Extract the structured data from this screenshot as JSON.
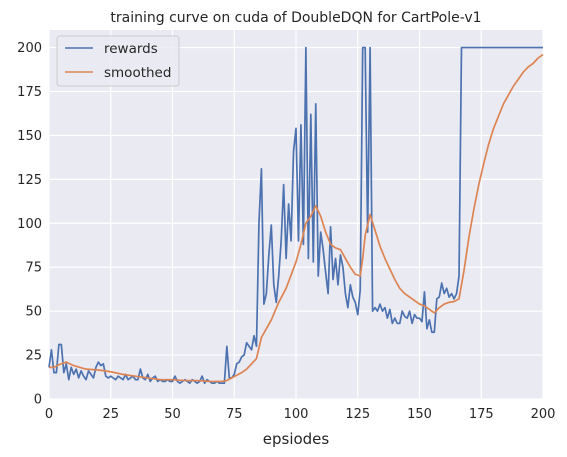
{
  "chart_data": {
    "type": "line",
    "title": "training curve on cuda of DoubleDQN for CartPole-v1",
    "xlabel": "epsiodes",
    "ylabel": "",
    "xlim": [
      0,
      200
    ],
    "ylim": [
      0,
      210
    ],
    "xticks": [
      0,
      25,
      50,
      75,
      100,
      125,
      150,
      175,
      200
    ],
    "yticks": [
      0,
      25,
      50,
      75,
      100,
      125,
      150,
      175,
      200
    ],
    "grid": true,
    "background": "#eaeaf2",
    "legend": {
      "placement": "top-left",
      "entries": [
        "rewards",
        "smoothed"
      ]
    },
    "series": [
      {
        "name": "rewards",
        "color": "#4c72b0",
        "points": [
          [
            0,
            18
          ],
          [
            1,
            28
          ],
          [
            2,
            15
          ],
          [
            3,
            15
          ],
          [
            4,
            31
          ],
          [
            5,
            31
          ],
          [
            6,
            15
          ],
          [
            7,
            20
          ],
          [
            8,
            11
          ],
          [
            9,
            18
          ],
          [
            10,
            14
          ],
          [
            11,
            17
          ],
          [
            12,
            12
          ],
          [
            13,
            16
          ],
          [
            14,
            13
          ],
          [
            15,
            11
          ],
          [
            16,
            16
          ],
          [
            17,
            14
          ],
          [
            18,
            12
          ],
          [
            19,
            18
          ],
          [
            20,
            21
          ],
          [
            21,
            19
          ],
          [
            22,
            20
          ],
          [
            23,
            13
          ],
          [
            24,
            12
          ],
          [
            25,
            13
          ],
          [
            26,
            12
          ],
          [
            27,
            11
          ],
          [
            28,
            13
          ],
          [
            29,
            12
          ],
          [
            30,
            11
          ],
          [
            31,
            14
          ],
          [
            32,
            11
          ],
          [
            33,
            12
          ],
          [
            34,
            13
          ],
          [
            35,
            11
          ],
          [
            36,
            11
          ],
          [
            37,
            17
          ],
          [
            38,
            12
          ],
          [
            39,
            11
          ],
          [
            40,
            14
          ],
          [
            41,
            10
          ],
          [
            42,
            12
          ],
          [
            43,
            13
          ],
          [
            44,
            10
          ],
          [
            45,
            11
          ],
          [
            46,
            10
          ],
          [
            47,
            10
          ],
          [
            48,
            11
          ],
          [
            49,
            10
          ],
          [
            50,
            10
          ],
          [
            51,
            13
          ],
          [
            52,
            10
          ],
          [
            53,
            9
          ],
          [
            54,
            10
          ],
          [
            55,
            11
          ],
          [
            56,
            10
          ],
          [
            57,
            9
          ],
          [
            58,
            11
          ],
          [
            59,
            10
          ],
          [
            60,
            9
          ],
          [
            61,
            10
          ],
          [
            62,
            13
          ],
          [
            63,
            9
          ],
          [
            64,
            11
          ],
          [
            65,
            10
          ],
          [
            66,
            9
          ],
          [
            67,
            9
          ],
          [
            68,
            10
          ],
          [
            69,
            9
          ],
          [
            70,
            9
          ],
          [
            71,
            9
          ],
          [
            72,
            30
          ],
          [
            73,
            12
          ],
          [
            74,
            12
          ],
          [
            75,
            14
          ],
          [
            76,
            20
          ],
          [
            77,
            21
          ],
          [
            78,
            24
          ],
          [
            79,
            25
          ],
          [
            80,
            32
          ],
          [
            81,
            30
          ],
          [
            82,
            28
          ],
          [
            83,
            36
          ],
          [
            84,
            30
          ],
          [
            85,
            100
          ],
          [
            86,
            131
          ],
          [
            87,
            54
          ],
          [
            88,
            60
          ],
          [
            89,
            82
          ],
          [
            90,
            99
          ],
          [
            91,
            65
          ],
          [
            92,
            55
          ],
          [
            93,
            70
          ],
          [
            94,
            90
          ],
          [
            95,
            122
          ],
          [
            96,
            80
          ],
          [
            97,
            111
          ],
          [
            98,
            90
          ],
          [
            99,
            141
          ],
          [
            100,
            154
          ],
          [
            101,
            90
          ],
          [
            102,
            156
          ],
          [
            103,
            88
          ],
          [
            104,
            200
          ],
          [
            105,
            80
          ],
          [
            106,
            162
          ],
          [
            107,
            78
          ],
          [
            108,
            168
          ],
          [
            109,
            70
          ],
          [
            110,
            95
          ],
          [
            111,
            85
          ],
          [
            112,
            72
          ],
          [
            113,
            60
          ],
          [
            114,
            98
          ],
          [
            115,
            68
          ],
          [
            116,
            80
          ],
          [
            117,
            65
          ],
          [
            118,
            82
          ],
          [
            119,
            75
          ],
          [
            120,
            60
          ],
          [
            121,
            52
          ],
          [
            122,
            65
          ],
          [
            123,
            58
          ],
          [
            124,
            55
          ],
          [
            125,
            48
          ],
          [
            126,
            62
          ],
          [
            127,
            200
          ],
          [
            128,
            200
          ],
          [
            129,
            95
          ],
          [
            130,
            200
          ],
          [
            131,
            50
          ],
          [
            132,
            52
          ],
          [
            133,
            50
          ],
          [
            134,
            54
          ],
          [
            135,
            50
          ],
          [
            136,
            52
          ],
          [
            137,
            46
          ],
          [
            138,
            51
          ],
          [
            139,
            43
          ],
          [
            140,
            46
          ],
          [
            141,
            43
          ],
          [
            142,
            43
          ],
          [
            143,
            50
          ],
          [
            144,
            47
          ],
          [
            145,
            46
          ],
          [
            146,
            50
          ],
          [
            147,
            43
          ],
          [
            148,
            48
          ],
          [
            149,
            46
          ],
          [
            150,
            46
          ],
          [
            151,
            44
          ],
          [
            152,
            61
          ],
          [
            153,
            40
          ],
          [
            154,
            45
          ],
          [
            155,
            38
          ],
          [
            156,
            38
          ],
          [
            157,
            57
          ],
          [
            158,
            58
          ],
          [
            159,
            66
          ],
          [
            160,
            60
          ],
          [
            161,
            63
          ],
          [
            162,
            58
          ],
          [
            163,
            60
          ],
          [
            164,
            57
          ],
          [
            165,
            60
          ],
          [
            166,
            70
          ],
          [
            167,
            200
          ],
          [
            168,
            200
          ],
          [
            170,
            200
          ],
          [
            175,
            200
          ],
          [
            180,
            200
          ],
          [
            185,
            200
          ],
          [
            190,
            200
          ],
          [
            195,
            200
          ],
          [
            200,
            200
          ]
        ]
      },
      {
        "name": "smoothed",
        "color": "#dd8452",
        "points": [
          [
            0,
            18
          ],
          [
            2,
            18
          ],
          [
            4,
            19.5
          ],
          [
            7,
            21
          ],
          [
            10,
            19
          ],
          [
            15,
            17
          ],
          [
            20,
            16.5
          ],
          [
            25,
            15.5
          ],
          [
            30,
            14
          ],
          [
            35,
            13
          ],
          [
            40,
            12
          ],
          [
            45,
            11
          ],
          [
            50,
            11
          ],
          [
            55,
            10.5
          ],
          [
            60,
            10.5
          ],
          [
            65,
            10
          ],
          [
            70,
            10
          ],
          [
            72,
            10.5
          ],
          [
            74,
            12
          ],
          [
            78,
            15
          ],
          [
            80,
            17
          ],
          [
            84,
            23
          ],
          [
            86,
            35
          ],
          [
            90,
            45
          ],
          [
            93,
            55
          ],
          [
            96,
            63
          ],
          [
            100,
            78
          ],
          [
            102,
            88
          ],
          [
            104,
            100
          ],
          [
            106,
            104
          ],
          [
            108,
            110
          ],
          [
            110,
            104
          ],
          [
            112,
            95
          ],
          [
            114,
            88
          ],
          [
            116,
            86
          ],
          [
            118,
            85
          ],
          [
            120,
            80
          ],
          [
            122,
            75
          ],
          [
            124,
            71
          ],
          [
            126,
            70
          ],
          [
            127,
            80
          ],
          [
            128,
            93
          ],
          [
            130,
            105
          ],
          [
            132,
            96
          ],
          [
            134,
            87
          ],
          [
            136,
            80
          ],
          [
            138,
            74
          ],
          [
            140,
            68
          ],
          [
            142,
            63
          ],
          [
            144,
            60
          ],
          [
            146,
            58
          ],
          [
            148,
            56
          ],
          [
            150,
            54
          ],
          [
            152,
            53
          ],
          [
            154,
            51
          ],
          [
            156,
            49
          ],
          [
            158,
            52
          ],
          [
            160,
            54
          ],
          [
            162,
            55
          ],
          [
            164,
            55.5
          ],
          [
            166,
            57
          ],
          [
            168,
            73
          ],
          [
            170,
            92
          ],
          [
            172,
            108
          ],
          [
            174,
            122
          ],
          [
            176,
            134
          ],
          [
            178,
            145
          ],
          [
            180,
            154
          ],
          [
            182,
            161
          ],
          [
            184,
            168
          ],
          [
            186,
            173
          ],
          [
            188,
            178
          ],
          [
            190,
            182
          ],
          [
            192,
            186
          ],
          [
            194,
            189
          ],
          [
            196,
            191
          ],
          [
            198,
            194
          ],
          [
            200,
            196
          ]
        ]
      }
    ]
  }
}
